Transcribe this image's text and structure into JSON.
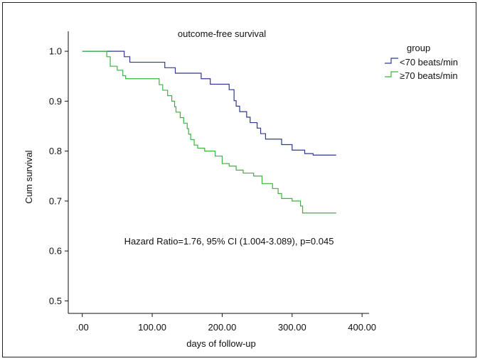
{
  "chart_data": {
    "type": "line",
    "title": "outcome-free survival",
    "xlabel": "days of follow-up",
    "ylabel": "Cum survival",
    "xlim": [
      -20,
      410
    ],
    "ylim": [
      0.475,
      1.04
    ],
    "x_ticks": [
      0,
      100,
      200,
      300,
      400
    ],
    "x_tick_labels": [
      ".00",
      "100.00",
      "200.00",
      "300.00",
      "400.00"
    ],
    "y_ticks": [
      0.5,
      0.6,
      0.7,
      0.8,
      0.9,
      1.0
    ],
    "y_tick_labels": [
      "0.5",
      "0.6",
      "0.7",
      "0.8",
      "0.9",
      "1.0"
    ],
    "legend_title": "group",
    "legend_position": "top-right",
    "annotation": "Hazard Ratio=1.76, 95% CI (1.004-3.089), p=0.045",
    "series": [
      {
        "name": "<70 beats/min",
        "color": "#2e3a8c",
        "points": [
          [
            0,
            1.0
          ],
          [
            30,
            1.0
          ],
          [
            60,
            0.989
          ],
          [
            68,
            0.978
          ],
          [
            118,
            0.967
          ],
          [
            133,
            0.956
          ],
          [
            170,
            0.945
          ],
          [
            183,
            0.934
          ],
          [
            210,
            0.923
          ],
          [
            217,
            0.901
          ],
          [
            220,
            0.89
          ],
          [
            225,
            0.879
          ],
          [
            235,
            0.868
          ],
          [
            240,
            0.857
          ],
          [
            250,
            0.846
          ],
          [
            255,
            0.835
          ],
          [
            262,
            0.824
          ],
          [
            285,
            0.813
          ],
          [
            300,
            0.802
          ],
          [
            318,
            0.795
          ],
          [
            330,
            0.792
          ],
          [
            347,
            0.792
          ],
          [
            363,
            0.792
          ]
        ]
      },
      {
        "name": "≥70 beats/min",
        "color": "#3db23d",
        "points": [
          [
            0,
            1.0
          ],
          [
            25,
            1.0
          ],
          [
            35,
            0.989
          ],
          [
            40,
            0.97
          ],
          [
            50,
            0.962
          ],
          [
            58,
            0.951
          ],
          [
            62,
            0.945
          ],
          [
            110,
            0.933
          ],
          [
            115,
            0.922
          ],
          [
            122,
            0.911
          ],
          [
            128,
            0.9
          ],
          [
            132,
            0.889
          ],
          [
            134,
            0.878
          ],
          [
            140,
            0.867
          ],
          [
            145,
            0.856
          ],
          [
            150,
            0.845
          ],
          [
            152,
            0.834
          ],
          [
            155,
            0.823
          ],
          [
            160,
            0.812
          ],
          [
            165,
            0.806
          ],
          [
            175,
            0.8
          ],
          [
            190,
            0.79
          ],
          [
            200,
            0.775
          ],
          [
            210,
            0.77
          ],
          [
            220,
            0.762
          ],
          [
            230,
            0.756
          ],
          [
            245,
            0.75
          ],
          [
            257,
            0.735
          ],
          [
            272,
            0.725
          ],
          [
            280,
            0.715
          ],
          [
            285,
            0.705
          ],
          [
            300,
            0.7
          ],
          [
            312,
            0.69
          ],
          [
            315,
            0.676
          ],
          [
            340,
            0.676
          ],
          [
            363,
            0.676
          ]
        ]
      }
    ]
  }
}
